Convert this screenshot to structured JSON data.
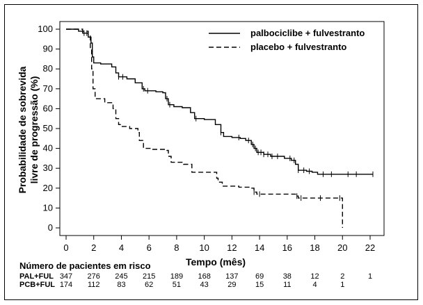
{
  "chart_data": {
    "type": "line",
    "xlabel": "Tempo (mês)",
    "ylabel_lines": [
      "Probabilidade de sobrevida",
      "livre de progressão (%)"
    ],
    "xlim": [
      0,
      22
    ],
    "ylim": [
      0,
      100
    ],
    "x_ticks": [
      0,
      2,
      4,
      6,
      8,
      10,
      12,
      14,
      16,
      18,
      20,
      22
    ],
    "y_ticks": [
      0,
      10,
      20,
      30,
      40,
      50,
      60,
      70,
      80,
      90,
      100
    ],
    "legend_position": "top-right",
    "series": [
      {
        "name": "palbociclibe + fulvestranto",
        "style": "solid",
        "step_points": [
          [
            0,
            100
          ],
          [
            0.6,
            100
          ],
          [
            0.9,
            99
          ],
          [
            1.2,
            98
          ],
          [
            1.6,
            96
          ],
          [
            1.8,
            93
          ],
          [
            1.9,
            86
          ],
          [
            2.0,
            83
          ],
          [
            2.5,
            82.5
          ],
          [
            3.3,
            81
          ],
          [
            3.6,
            78
          ],
          [
            3.8,
            76
          ],
          [
            4.4,
            75
          ],
          [
            5.0,
            73
          ],
          [
            5.5,
            70
          ],
          [
            5.7,
            69
          ],
          [
            6.5,
            68.5
          ],
          [
            7.0,
            68
          ],
          [
            7.2,
            65
          ],
          [
            7.4,
            62
          ],
          [
            7.8,
            61
          ],
          [
            8.4,
            60.5
          ],
          [
            9.0,
            58
          ],
          [
            9.3,
            55
          ],
          [
            10.0,
            54.5
          ],
          [
            10.8,
            52
          ],
          [
            11.2,
            48
          ],
          [
            11.4,
            46
          ],
          [
            12.0,
            45.5
          ],
          [
            12.6,
            45
          ],
          [
            13.0,
            44
          ],
          [
            13.4,
            42
          ],
          [
            13.6,
            40
          ],
          [
            13.8,
            38
          ],
          [
            14.3,
            37
          ],
          [
            14.8,
            36
          ],
          [
            15.3,
            36
          ],
          [
            15.8,
            35
          ],
          [
            16.3,
            34
          ],
          [
            16.6,
            32
          ],
          [
            16.8,
            29
          ],
          [
            17.4,
            28.5
          ],
          [
            17.8,
            28
          ],
          [
            18.2,
            27
          ],
          [
            19.0,
            27
          ],
          [
            20.0,
            27
          ],
          [
            21.0,
            27
          ],
          [
            22.2,
            27
          ]
        ],
        "censor_x": [
          1.3,
          1.5,
          3.8,
          4.1,
          5.6,
          5.9,
          7.3,
          7.5,
          9.4,
          11.2,
          12.5,
          13.2,
          13.5,
          13.7,
          13.9,
          14.1,
          14.3,
          14.6,
          14.9,
          15.3,
          16.2,
          16.5,
          16.8,
          17.2,
          17.6,
          18.6,
          19.2,
          20.4,
          21.0,
          22.2
        ]
      },
      {
        "name": "placebo + fulvestranto",
        "style": "dashed",
        "step_points": [
          [
            0,
            100
          ],
          [
            0.8,
            100
          ],
          [
            1.2,
            99
          ],
          [
            1.6,
            97
          ],
          [
            1.75,
            90
          ],
          [
            1.85,
            80
          ],
          [
            1.95,
            70
          ],
          [
            2.1,
            65
          ],
          [
            2.8,
            63
          ],
          [
            3.4,
            60
          ],
          [
            3.6,
            55
          ],
          [
            3.8,
            52
          ],
          [
            4.0,
            51
          ],
          [
            4.6,
            50
          ],
          [
            5.2,
            48
          ],
          [
            5.3,
            44
          ],
          [
            5.6,
            40
          ],
          [
            6.2,
            39.5
          ],
          [
            7.3,
            39
          ],
          [
            7.4,
            36
          ],
          [
            7.6,
            33
          ],
          [
            8.5,
            32
          ],
          [
            9.1,
            28
          ],
          [
            10.0,
            28
          ],
          [
            10.7,
            28
          ],
          [
            10.9,
            25
          ],
          [
            11.0,
            23
          ],
          [
            11.3,
            21
          ],
          [
            12.5,
            20.5
          ],
          [
            13.4,
            20
          ],
          [
            13.6,
            18
          ],
          [
            13.8,
            17
          ],
          [
            15.0,
            17
          ],
          [
            16.2,
            17
          ],
          [
            16.6,
            16
          ],
          [
            16.8,
            15
          ],
          [
            18.0,
            15
          ],
          [
            19.0,
            15
          ],
          [
            20.0,
            15
          ],
          [
            20.0,
            0
          ]
        ],
        "censor_x": [
          13.6,
          14.0,
          16.7,
          17.0,
          18.4,
          19.8
        ]
      }
    ],
    "risk_table": {
      "title": "Número de pacientes em risco",
      "times": [
        0,
        2,
        4,
        6,
        8,
        10,
        12,
        14,
        16,
        18,
        20,
        22
      ],
      "rows": [
        {
          "label": "PAL+FUL",
          "values": [
            "347",
            "276",
            "245",
            "215",
            "189",
            "168",
            "137",
            "69",
            "38",
            "12",
            "2",
            "1"
          ]
        },
        {
          "label": "PCB+FUL",
          "values": [
            "174",
            "112",
            "83",
            "62",
            "51",
            "43",
            "29",
            "15",
            "11",
            "4",
            "1",
            ""
          ]
        }
      ]
    }
  }
}
